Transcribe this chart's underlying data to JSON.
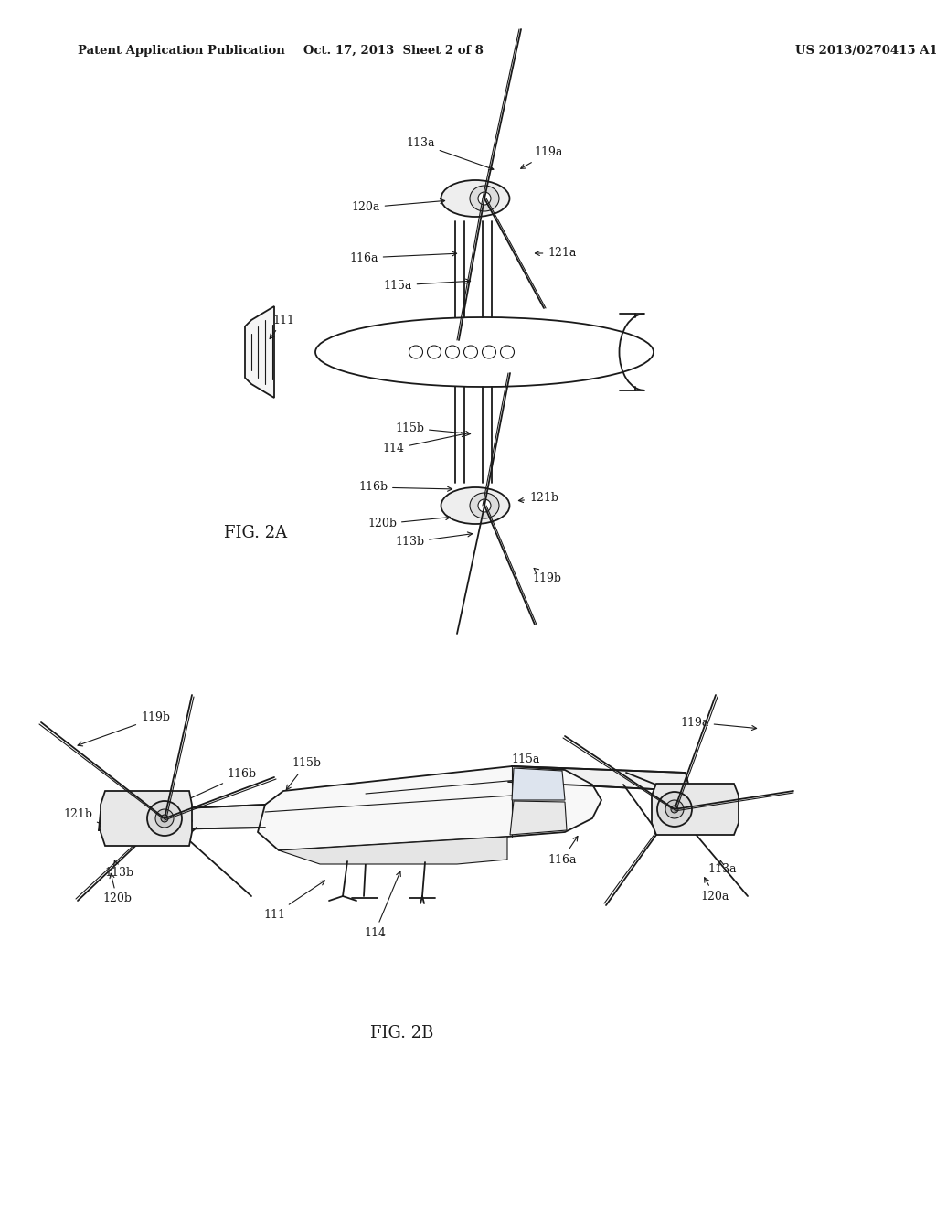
{
  "header_left": "Patent Application Publication",
  "header_mid": "Oct. 17, 2013  Sheet 2 of 8",
  "header_right": "US 2013/0270415 A1",
  "fig2a_label": "FIG. 2A",
  "fig2b_label": "FIG. 2B",
  "background_color": "#ffffff",
  "line_color": "#1a1a1a",
  "text_color": "#1a1a1a",
  "header_fontsize": 9.5,
  "label_fontsize": 9,
  "fig_label_fontsize": 13
}
